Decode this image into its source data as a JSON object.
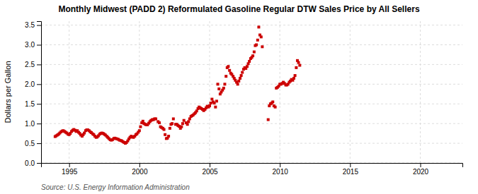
{
  "chart_data": {
    "type": "scatter",
    "title": "Monthly Midwest (PADD 2) Reformulated Gasoline Regular DTW Sales Price by All Sellers",
    "ylabel": "Dollars per Gallon",
    "source": "Source: U.S. Energy Information Administration",
    "color": "#cc0000",
    "marker": "square",
    "grid": true,
    "xlim": [
      1993.0,
      2023.0
    ],
    "ylim": [
      0.0,
      3.6
    ],
    "xticks": [
      1995,
      2000,
      2005,
      2010,
      2015,
      2020
    ],
    "yticks": [
      {
        "value": 0.0,
        "label": "0.0"
      },
      0.5,
      {
        "value": 1.0,
        "label": "1.0"
      },
      1.5,
      {
        "value": 2.0,
        "label": "2.0"
      },
      2.5,
      {
        "value": 3.0,
        "label": "3.0"
      },
      3.5
    ],
    "x": [
      1994.0,
      1994.08,
      1994.17,
      1994.25,
      1994.33,
      1994.42,
      1994.5,
      1994.58,
      1994.67,
      1994.75,
      1994.83,
      1994.92,
      1995.0,
      1995.08,
      1995.17,
      1995.25,
      1995.33,
      1995.42,
      1995.5,
      1995.58,
      1995.67,
      1995.75,
      1995.83,
      1995.92,
      1996.0,
      1996.08,
      1996.17,
      1996.25,
      1996.33,
      1996.42,
      1996.5,
      1996.58,
      1996.67,
      1996.75,
      1996.83,
      1996.92,
      1997.0,
      1997.08,
      1997.17,
      1997.25,
      1997.33,
      1997.42,
      1997.5,
      1997.58,
      1997.67,
      1997.75,
      1997.83,
      1997.92,
      1998.0,
      1998.08,
      1998.17,
      1998.25,
      1998.33,
      1998.42,
      1998.5,
      1998.58,
      1998.67,
      1998.75,
      1998.83,
      1998.92,
      1999.0,
      1999.08,
      1999.17,
      1999.25,
      1999.33,
      1999.42,
      1999.5,
      1999.58,
      1999.67,
      1999.75,
      1999.83,
      1999.92,
      2000.0,
      2000.08,
      2000.17,
      2000.25,
      2000.33,
      2000.42,
      2000.5,
      2000.58,
      2000.67,
      2000.75,
      2000.83,
      2000.92,
      2001.0,
      2001.08,
      2001.17,
      2001.33,
      2001.42,
      2001.5,
      2001.58,
      2001.67,
      2001.75,
      2001.83,
      2001.92,
      2002.0,
      2002.08,
      2002.17,
      2002.25,
      2002.33,
      2002.42,
      2002.58,
      2002.67,
      2002.75,
      2002.83,
      2002.92,
      2003.0,
      2003.08,
      2003.17,
      2003.33,
      2003.42,
      2003.5,
      2003.58,
      2003.67,
      2003.75,
      2003.83,
      2003.92,
      2004.0,
      2004.08,
      2004.17,
      2004.25,
      2004.33,
      2004.42,
      2004.5,
      2004.58,
      2004.67,
      2004.75,
      2004.83,
      2004.92,
      2005.0,
      2005.08,
      2005.17,
      2005.25,
      2005.33,
      2005.42,
      2005.5,
      2005.58,
      2005.67,
      2005.75,
      2005.83,
      2005.92,
      2006.0,
      2006.08,
      2006.17,
      2006.25,
      2006.33,
      2006.42,
      2006.5,
      2006.58,
      2006.67,
      2006.75,
      2006.83,
      2006.92,
      2007.0,
      2007.08,
      2007.17,
      2007.25,
      2007.33,
      2007.42,
      2007.5,
      2007.58,
      2007.67,
      2007.75,
      2007.83,
      2007.92,
      2008.0,
      2008.08,
      2008.17,
      2008.25,
      2008.33,
      2008.42,
      2008.5,
      2008.58,
      2008.67,
      2008.75,
      2009.17,
      2009.25,
      2009.33,
      2009.42,
      2009.5,
      2009.58,
      2009.67,
      2009.75,
      2009.83,
      2009.92,
      2010.0,
      2010.08,
      2010.17,
      2010.25,
      2010.33,
      2010.42,
      2010.5,
      2010.58,
      2010.67,
      2010.75,
      2010.83,
      2010.92,
      2011.0,
      2011.08,
      2011.17,
      2011.25,
      2011.33,
      2011.42
    ],
    "values": [
      0.67,
      0.69,
      0.71,
      0.73,
      0.76,
      0.79,
      0.81,
      0.82,
      0.8,
      0.78,
      0.76,
      0.73,
      0.72,
      0.75,
      0.8,
      0.83,
      0.85,
      0.83,
      0.8,
      0.82,
      0.78,
      0.75,
      0.71,
      0.68,
      0.72,
      0.76,
      0.82,
      0.84,
      0.84,
      0.82,
      0.79,
      0.77,
      0.74,
      0.72,
      0.68,
      0.65,
      0.66,
      0.69,
      0.73,
      0.75,
      0.76,
      0.75,
      0.73,
      0.71,
      0.68,
      0.65,
      0.62,
      0.59,
      0.58,
      0.59,
      0.62,
      0.63,
      0.62,
      0.61,
      0.6,
      0.58,
      0.57,
      0.56,
      0.54,
      0.52,
      0.5,
      0.52,
      0.56,
      0.61,
      0.65,
      0.68,
      0.66,
      0.65,
      0.68,
      0.72,
      0.74,
      0.78,
      0.82,
      0.92,
      1.02,
      1.06,
      1.0,
      0.98,
      0.97,
      0.97,
      1.01,
      1.05,
      1.08,
      1.1,
      1.1,
      1.12,
      1.12,
      1.05,
      1.02,
      0.92,
      0.9,
      0.88,
      0.85,
      0.72,
      0.62,
      0.63,
      0.68,
      0.88,
      0.98,
      1.0,
      1.12,
      0.98,
      0.98,
      0.95,
      0.93,
      0.88,
      0.92,
      1.0,
      1.08,
      1.02,
      0.98,
      1.05,
      1.12,
      1.18,
      1.2,
      1.22,
      1.25,
      1.28,
      1.32,
      1.38,
      1.42,
      1.4,
      1.38,
      1.36,
      1.33,
      1.36,
      1.4,
      1.44,
      1.42,
      1.45,
      1.52,
      1.62,
      1.55,
      1.52,
      1.42,
      1.57,
      2.0,
      1.88,
      1.75,
      1.8,
      1.85,
      1.9,
      2.0,
      2.2,
      2.42,
      2.45,
      2.35,
      2.28,
      2.25,
      2.2,
      2.15,
      2.1,
      2.05,
      2.0,
      2.08,
      2.15,
      2.22,
      2.3,
      2.38,
      2.42,
      2.4,
      2.45,
      2.52,
      2.58,
      2.65,
      2.68,
      2.72,
      2.82,
      2.98,
      3.0,
      3.12,
      3.45,
      3.25,
      3.2,
      2.95,
      1.1,
      1.45,
      1.5,
      1.52,
      1.55,
      1.45,
      1.42,
      1.9,
      1.92,
      1.95,
      2.0,
      2.0,
      2.02,
      2.05,
      2.02,
      1.98,
      1.98,
      2.0,
      2.05,
      2.08,
      2.12,
      2.1,
      2.15,
      2.22,
      2.42,
      2.6,
      2.55,
      2.48
    ]
  }
}
